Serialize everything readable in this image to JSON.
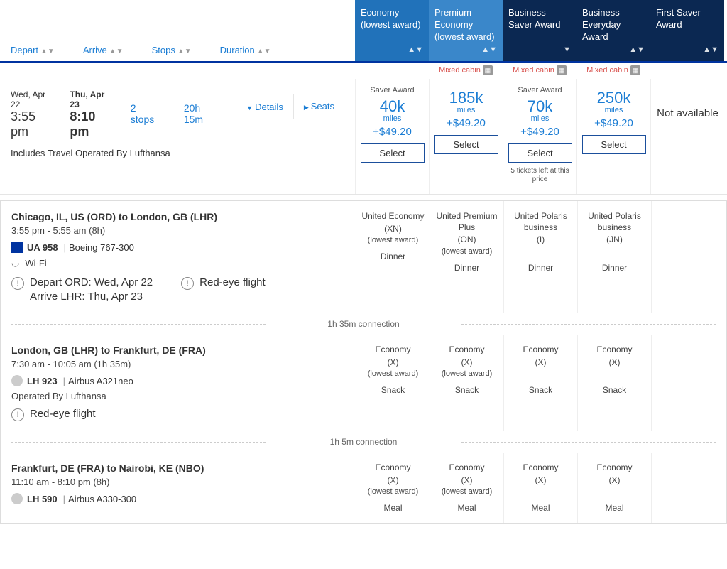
{
  "colors": {
    "link": "#1b7dd4",
    "header_blue": "#2172ba",
    "header_lightblue": "#3a87ca",
    "header_dark": "#0b2852",
    "accent": "#0033a0",
    "mixed_red": "#d9534f"
  },
  "sort_columns": [
    "Depart",
    "Arrive",
    "Stops",
    "Duration"
  ],
  "fare_headers": [
    {
      "label": "Economy (lowest award)",
      "style": "economy"
    },
    {
      "label": "Premium Economy (lowest award)",
      "style": "premium"
    },
    {
      "label": "Business Saver Award",
      "style": "dark"
    },
    {
      "label": "Business Everyday Award",
      "style": "dark"
    },
    {
      "label": "First Saver Award",
      "style": "dark"
    }
  ],
  "mixed_cabin_label": "Mixed cabin",
  "mixed_flags": [
    false,
    true,
    true,
    true,
    false
  ],
  "flight": {
    "depart_date": "Wed, Apr 22",
    "depart_time": "3:55 pm",
    "arrive_date": "Thu, Apr 23",
    "arrive_time": "8:10 pm",
    "stops": "2 stops",
    "duration": "20h 15m",
    "details_label": "Details",
    "seats_label": "Seats",
    "operated_note": "Includes Travel Operated By Lufthansa"
  },
  "fares": [
    {
      "badge": "Saver Award",
      "miles": "40k",
      "miles_label": "miles",
      "fee": "+$49.20",
      "select": "Select"
    },
    {
      "badge": "",
      "miles": "185k",
      "miles_label": "miles",
      "fee": "+$49.20",
      "select": "Select"
    },
    {
      "badge": "Saver Award",
      "miles": "70k",
      "miles_label": "miles",
      "fee": "+$49.20",
      "select": "Select",
      "note": "5 tickets left at this price"
    },
    {
      "badge": "",
      "miles": "250k",
      "miles_label": "miles",
      "fee": "+$49.20",
      "select": "Select"
    },
    {
      "na": "Not available"
    }
  ],
  "segments": [
    {
      "route": "Chicago, IL, US (ORD) to London, GB (LHR)",
      "times": "3:55 pm - 5:55 am (8h)",
      "airline_logo": "ua",
      "flight_num": "UA 958",
      "aircraft": "Boeing 767-300",
      "wifi": "Wi-Fi",
      "notes": [
        {
          "text": "Depart ORD: Wed, Apr 22\nArrive LHR: Thu, Apr 23"
        },
        {
          "text": "Red-eye flight"
        }
      ],
      "fares": [
        {
          "class": "United Economy",
          "code": "(XN)",
          "sub": "(lowest award)",
          "meal": "Dinner"
        },
        {
          "class": "United Premium Plus",
          "code": "(ON)",
          "sub": "(lowest award)",
          "meal": "Dinner"
        },
        {
          "class": "United Polaris business",
          "code": "(I)",
          "sub": "",
          "meal": "Dinner"
        },
        {
          "class": "United Polaris business",
          "code": "(JN)",
          "sub": "",
          "meal": "Dinner"
        },
        {
          "class": "",
          "code": "",
          "sub": "",
          "meal": ""
        }
      ],
      "connection_after": "1h 35m connection"
    },
    {
      "route": "London, GB (LHR) to Frankfurt, DE (FRA)",
      "times": "7:30 am - 10:05 am (1h 35m)",
      "airline_logo": "lh",
      "flight_num": "LH 923",
      "aircraft": "Airbus A321neo",
      "operated_by": "Operated By Lufthansa",
      "notes": [
        {
          "text": "Red-eye flight"
        }
      ],
      "fares": [
        {
          "class": "Economy",
          "code": "(X)",
          "sub": "(lowest award)",
          "meal": "Snack"
        },
        {
          "class": "Economy",
          "code": "(X)",
          "sub": "(lowest award)",
          "meal": "Snack"
        },
        {
          "class": "Economy",
          "code": "(X)",
          "sub": "",
          "meal": "Snack"
        },
        {
          "class": "Economy",
          "code": "(X)",
          "sub": "",
          "meal": "Snack"
        },
        {
          "class": "",
          "code": "",
          "sub": "",
          "meal": ""
        }
      ],
      "connection_after": "1h 5m connection"
    },
    {
      "route": "Frankfurt, DE (FRA) to Nairobi, KE (NBO)",
      "times": "11:10 am - 8:10 pm (8h)",
      "airline_logo": "lh",
      "flight_num": "LH 590",
      "aircraft": "Airbus A330-300",
      "fares": [
        {
          "class": "Economy",
          "code": "(X)",
          "sub": "(lowest award)",
          "meal": "Meal"
        },
        {
          "class": "Economy",
          "code": "(X)",
          "sub": "(lowest award)",
          "meal": "Meal"
        },
        {
          "class": "Economy",
          "code": "(X)",
          "sub": "",
          "meal": "Meal"
        },
        {
          "class": "Economy",
          "code": "(X)",
          "sub": "",
          "meal": "Meal"
        },
        {
          "class": "",
          "code": "",
          "sub": "",
          "meal": ""
        }
      ]
    }
  ]
}
